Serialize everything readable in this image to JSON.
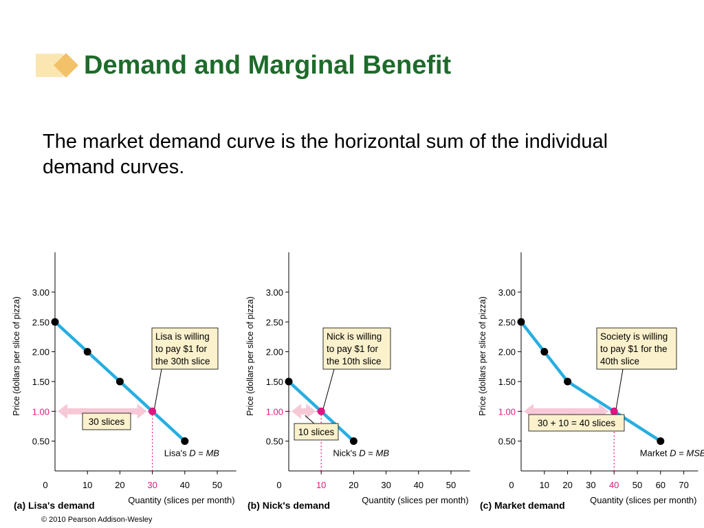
{
  "slide": {
    "title": "Demand and Marginal Benefit",
    "body": "The market demand curve is the horizontal sum of the individual demand curves.",
    "copyright": "© 2010 Pearson Addison-Wesley"
  },
  "colors": {
    "title": "#1e6b2b",
    "curve": "#28aee0",
    "point": "#000000",
    "highlight": "#e0157f",
    "box_fill": "#fbf1cd",
    "arrow": "#f7c9d7",
    "logo_light": "#fbe6b2",
    "logo_dark": "#f2c169"
  },
  "chart_data": [
    {
      "type": "line",
      "panel_label": "(a) Lisa's demand",
      "ylabel": "Price (dollars per slice of pizza)",
      "xlabel": "Quantity (slices per month)",
      "ylim": [
        0,
        3.4
      ],
      "xlim": [
        0,
        55
      ],
      "yticks": [
        "0.50",
        "1.00",
        "1.50",
        "2.00",
        "2.50",
        "3.00"
      ],
      "ytick_values": [
        0.5,
        1.0,
        1.5,
        2.0,
        2.5,
        3.0
      ],
      "xticks": [
        "0",
        "10",
        "20",
        "30",
        "40",
        "50"
      ],
      "xtick_values": [
        0,
        10,
        20,
        30,
        40,
        50
      ],
      "x": [
        0,
        10,
        20,
        30,
        40
      ],
      "y": [
        2.5,
        2.0,
        1.5,
        1.0,
        0.5
      ],
      "marked_points": [
        0,
        1,
        2,
        4
      ],
      "highlight": {
        "x": 30,
        "y": 1.0,
        "x_label": "30",
        "y_label": "1.00"
      },
      "callout": [
        "Lisa is willing",
        "to pay $1 for",
        "the 30th slice"
      ],
      "quantity_box": "30 slices",
      "curve_label": {
        "prefix": "Lisa's ",
        "d": "D",
        "mid": " = ",
        "mb": "MB"
      }
    },
    {
      "type": "line",
      "panel_label": "(b) Nick's demand",
      "ylabel": "Price (dollars per slice of pizza)",
      "xlabel": "Quantity (slices per month)",
      "ylim": [
        0,
        3.4
      ],
      "xlim": [
        0,
        55
      ],
      "yticks": [
        "0.50",
        "1.00",
        "1.50",
        "2.00",
        "2.50",
        "3.00"
      ],
      "ytick_values": [
        0.5,
        1.0,
        1.5,
        2.0,
        2.5,
        3.0
      ],
      "xticks": [
        "0",
        "10",
        "20",
        "30",
        "40",
        "50"
      ],
      "xtick_values": [
        0,
        10,
        20,
        30,
        40,
        50
      ],
      "x": [
        0,
        10,
        20
      ],
      "y": [
        1.5,
        1.0,
        0.5
      ],
      "marked_points": [
        0,
        2
      ],
      "highlight": {
        "x": 10,
        "y": 1.0,
        "x_label": "10",
        "y_label": "1.00"
      },
      "callout": [
        "Nick is willing",
        "to pay $1 for",
        "the 10th slice"
      ],
      "quantity_box": "10 slices",
      "curve_label": {
        "prefix": "Nick's ",
        "d": "D",
        "mid": " = ",
        "mb": "MB"
      }
    },
    {
      "type": "line",
      "panel_label": "(c) Market demand",
      "ylabel": "Price (dollars per slice of pizza)",
      "xlabel": "Quantity (slices per month)",
      "ylim": [
        0,
        3.4
      ],
      "xlim": [
        0,
        75
      ],
      "yticks": [
        "0.50",
        "1.00",
        "1.50",
        "2.00",
        "2.50",
        "3.00"
      ],
      "ytick_values": [
        0.5,
        1.0,
        1.5,
        2.0,
        2.5,
        3.0
      ],
      "xticks": [
        "0",
        "10",
        "20",
        "30",
        "40",
        "50",
        "60",
        "70"
      ],
      "xtick_values": [
        0,
        10,
        20,
        30,
        40,
        50,
        60,
        70
      ],
      "x": [
        0,
        10,
        20,
        40,
        60
      ],
      "y": [
        2.5,
        2.0,
        1.5,
        1.0,
        0.5
      ],
      "marked_points": [
        0,
        1,
        2,
        4
      ],
      "highlight": {
        "x": 40,
        "y": 1.0,
        "x_label": "40",
        "y_label": "1.00"
      },
      "callout": [
        "Society is willing",
        "to pay $1 for the",
        "40th slice"
      ],
      "quantity_box": "30 + 10 = 40 slices",
      "curve_label": {
        "prefix": "Market ",
        "d": "D",
        "mid": " = ",
        "mb": "MSB"
      }
    }
  ]
}
